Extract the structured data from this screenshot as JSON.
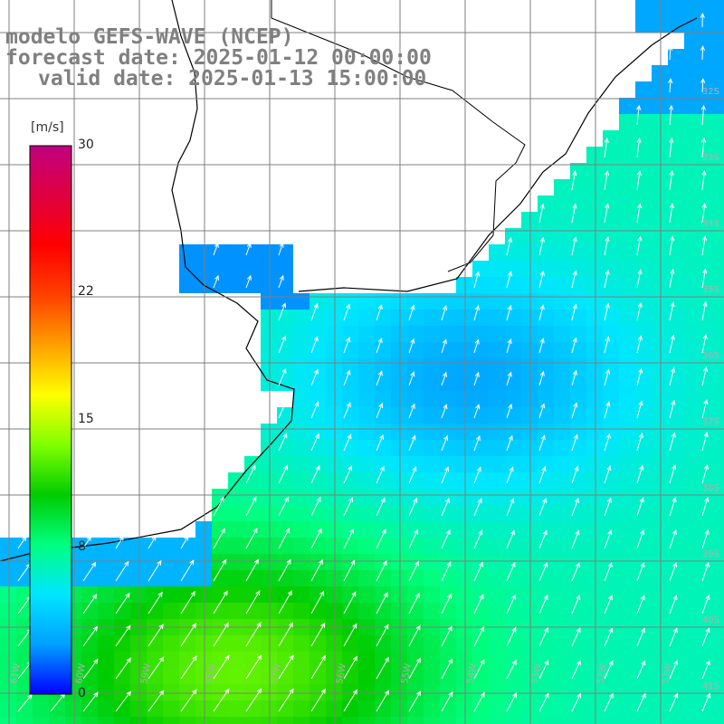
{
  "header": {
    "model": "modelo GEFS-WAVE (NCEP)",
    "forecast": "forecast date: 2025-01-12 00:00:00",
    "valid": "valid date: 2025-01-13 15:00:00"
  },
  "colorbar": {
    "unit": "[m/s]",
    "max_label": "30",
    "labels": [
      {
        "value": 30,
        "text": "30"
      },
      {
        "value": 22,
        "text": "22"
      },
      {
        "value": 15,
        "text": "15"
      },
      {
        "value": 8,
        "text": "8"
      },
      {
        "value": 0,
        "text": "0"
      }
    ],
    "colors": [
      "#0000ff",
      "#00a0ff",
      "#00e6ff",
      "#00ff80",
      "#00cc00",
      "#80ff00",
      "#ffff00",
      "#ffa000",
      "#ff4000",
      "#ff0000",
      "#e00040",
      "#c00080"
    ]
  },
  "map": {
    "lat_labels": [
      "32S",
      "33S",
      "34S",
      "35S",
      "36S",
      "37S",
      "38S",
      "39S",
      "40S",
      "41S"
    ],
    "lon_labels": [
      "61W",
      "60W",
      "59W",
      "58W",
      "57W",
      "56W",
      "55W",
      "54W",
      "53W",
      "52W",
      "51W"
    ],
    "wind_dir_deg": 200,
    "colors": {
      "land": "#ffffff",
      "coast": "#000000",
      "grid": "#7f7f7f",
      "arrow": "#ffffff"
    }
  }
}
